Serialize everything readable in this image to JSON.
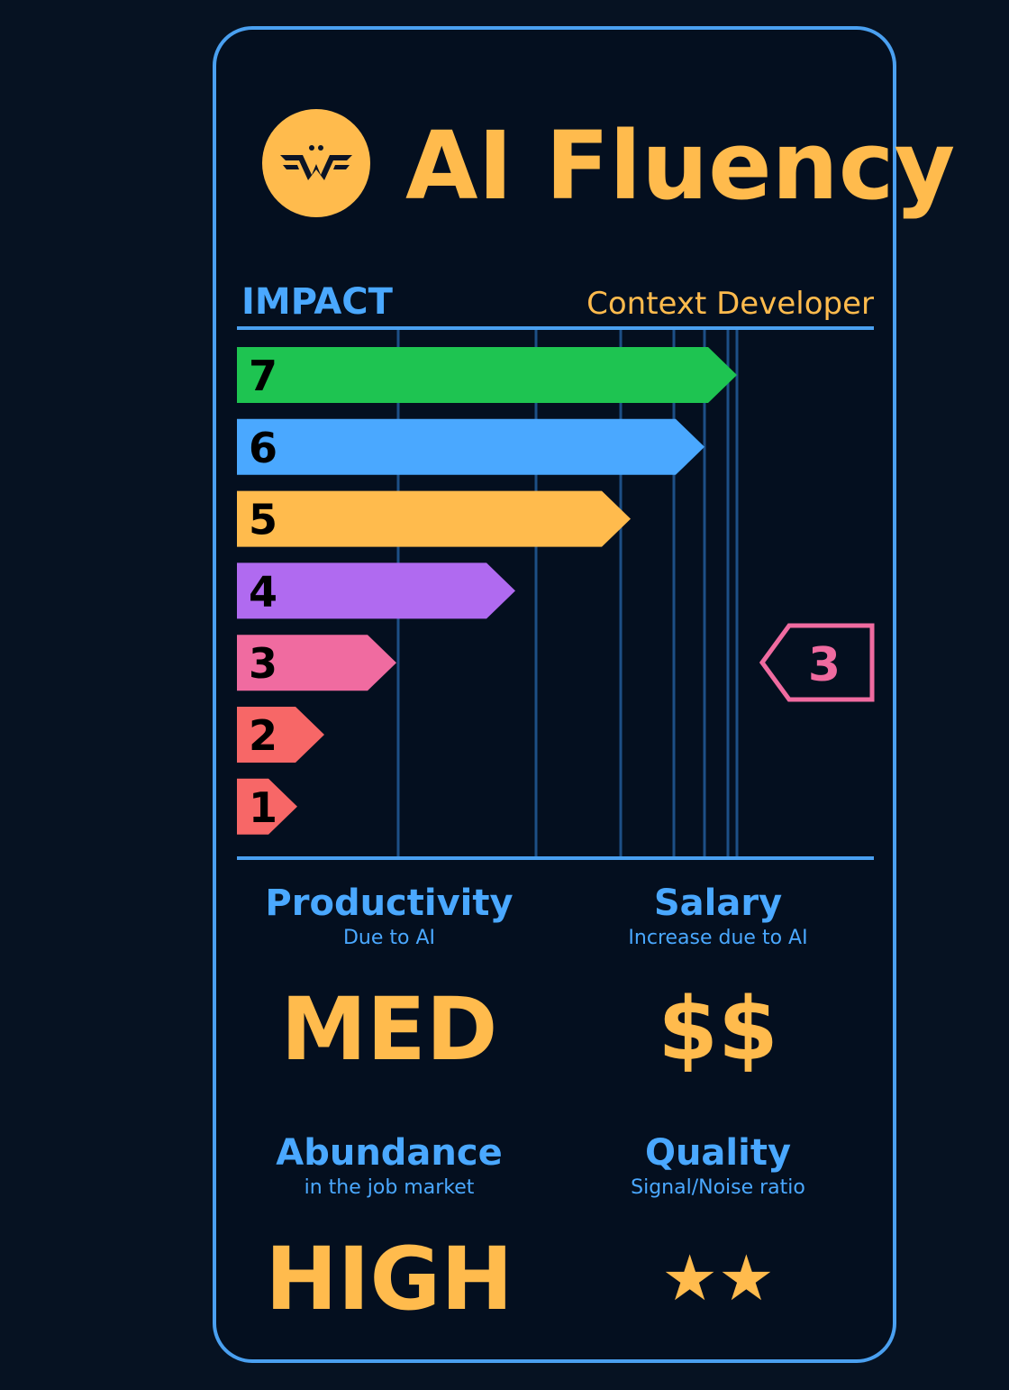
{
  "header": {
    "title": "AI Fluency"
  },
  "impact": {
    "label": "IMPACT",
    "role": "Context Developer",
    "levels": [
      7,
      6,
      5,
      4,
      3,
      2,
      1
    ],
    "selected": 3
  },
  "stats": [
    {
      "title": "Productivity",
      "subtitle": "Due to AI",
      "value": "MED"
    },
    {
      "title": "Salary",
      "subtitle": "Increase due to AI",
      "value": "$$"
    },
    {
      "title": "Abundance",
      "subtitle": "in the job market",
      "value": "HIGH"
    },
    {
      "title": "Quality",
      "subtitle": "Signal/Noise ratio",
      "value": "★★"
    }
  ]
}
